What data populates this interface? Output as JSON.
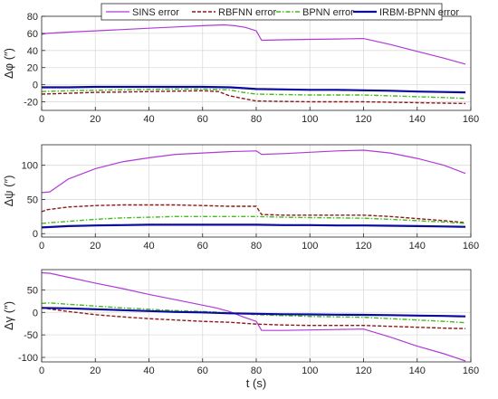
{
  "chart_data": {
    "type": "line",
    "xlabel": "t (s)",
    "xlim": [
      0,
      160
    ],
    "xticks": [
      0,
      20,
      40,
      60,
      80,
      100,
      120,
      140,
      160
    ],
    "legend": {
      "placement": "top",
      "entries": [
        "SINS error",
        "RBFNN error",
        "BPNN error",
        "IRBM-BPNN error"
      ]
    },
    "colors": {
      "SINS error": "#b03ad6",
      "RBFNN error": "#8b1a1a",
      "BPNN error": "#44bb1c",
      "IRBM-BPNN error": "#0a0a9c"
    },
    "grid": true,
    "panels": [
      {
        "ylabel": "Δφ (″)",
        "ylim": [
          -30,
          80
        ],
        "yticks": [
          -20,
          0,
          20,
          40,
          60,
          80
        ],
        "series": [
          {
            "name": "SINS error",
            "x": [
              0,
              2,
              10,
              20,
              30,
              40,
              50,
              60,
              68,
              72,
              76,
              80,
              82,
              90,
              100,
              110,
              120,
              130,
              140,
              150,
              158
            ],
            "values": [
              59,
              60,
              61.5,
              63,
              64.5,
              66,
              67.5,
              69,
              70,
              69,
              67,
              63,
              52,
              52.5,
              53,
              53.5,
              54,
              47,
              39,
              31,
              24
            ]
          },
          {
            "name": "RBFNN error",
            "x": [
              0,
              10,
              20,
              30,
              40,
              50,
              60,
              66,
              70,
              75,
              80,
              90,
              100,
              110,
              120,
              130,
              140,
              150,
              158
            ],
            "values": [
              -11,
              -10,
              -9,
              -8.5,
              -8,
              -7.5,
              -7,
              -8,
              -13,
              -16,
              -19,
              -19.5,
              -20,
              -20,
              -20,
              -20.5,
              -21,
              -21.5,
              -22
            ]
          },
          {
            "name": "BPNN error",
            "x": [
              0,
              10,
              20,
              30,
              40,
              50,
              60,
              70,
              75,
              80,
              90,
              100,
              110,
              120,
              130,
              140,
              150,
              158
            ],
            "values": [
              -8,
              -7,
              -6.5,
              -6,
              -5.5,
              -5,
              -5,
              -6,
              -9,
              -11,
              -11.5,
              -12,
              -12,
              -12,
              -13,
              -14,
              -15,
              -16
            ]
          },
          {
            "name": "IRBM-BPNN error",
            "x": [
              0,
              10,
              20,
              30,
              40,
              50,
              60,
              70,
              75,
              80,
              90,
              100,
              110,
              120,
              130,
              140,
              150,
              158
            ],
            "values": [
              -3,
              -3,
              -2.5,
              -2.5,
              -2.5,
              -2.5,
              -2.5,
              -3,
              -4,
              -5,
              -5.5,
              -6,
              -6,
              -6.5,
              -7,
              -8,
              -8.5,
              -9
            ]
          }
        ]
      },
      {
        "ylabel": "Δψ (″)",
        "ylim": [
          -5,
          130
        ],
        "yticks": [
          0,
          50,
          100
        ],
        "series": [
          {
            "name": "SINS error",
            "x": [
              0,
              3,
              10,
              20,
              30,
              40,
              50,
              60,
              70,
              80,
              82,
              90,
              100,
              110,
              120,
              130,
              140,
              150,
              158
            ],
            "values": [
              60,
              61,
              80,
              95,
              105,
              111,
              116,
              118,
              120,
              121,
              116,
              117,
              119,
              121,
              122,
              118,
              110,
              100,
              88
            ]
          },
          {
            "name": "RBFNN error",
            "x": [
              0,
              2,
              10,
              20,
              30,
              40,
              50,
              60,
              70,
              80,
              82,
              90,
              100,
              110,
              120,
              130,
              140,
              150,
              158
            ],
            "values": [
              32,
              35,
              39,
              41,
              42,
              42,
              42,
              41,
              40,
              40,
              28,
              27,
              27,
              27,
              27,
              25,
              22,
              19,
              16
            ]
          },
          {
            "name": "BPNN error",
            "x": [
              0,
              10,
              20,
              30,
              40,
              50,
              60,
              70,
              80,
              90,
              100,
              110,
              120,
              130,
              140,
              150,
              158
            ],
            "values": [
              15,
              18,
              21,
              23,
              24,
              25,
              25,
              25,
              25,
              24,
              23.5,
              23,
              22.5,
              21,
              19,
              17,
              15
            ]
          },
          {
            "name": "IRBM-BPNN error",
            "x": [
              0,
              10,
              20,
              30,
              40,
              50,
              60,
              70,
              80,
              90,
              100,
              110,
              120,
              130,
              140,
              150,
              158
            ],
            "values": [
              9,
              11,
              12,
              12.5,
              13,
              13,
              13,
              13,
              13,
              12.5,
              12.5,
              12,
              12,
              11.5,
              11,
              10.5,
              10
            ]
          }
        ]
      },
      {
        "ylabel": "Δγ (″)",
        "ylim": [
          -110,
          95
        ],
        "yticks": [
          -100,
          -50,
          0,
          50
        ],
        "series": [
          {
            "name": "SINS error",
            "x": [
              0,
              3,
              10,
              20,
              30,
              40,
              50,
              60,
              65,
              70,
              75,
              80,
              82,
              90,
              100,
              110,
              120,
              130,
              140,
              150,
              158
            ],
            "values": [
              88,
              87,
              78,
              65,
              53,
              40,
              28,
              16,
              10,
              2,
              -10,
              -20,
              -40,
              -40,
              -39,
              -38,
              -37,
              -55,
              -75,
              -92,
              -108
            ]
          },
          {
            "name": "RBFNN error",
            "x": [
              0,
              10,
              20,
              30,
              40,
              50,
              60,
              70,
              80,
              90,
              100,
              110,
              120,
              130,
              140,
              150,
              158
            ],
            "values": [
              10,
              2,
              -5,
              -10,
              -14,
              -17,
              -20,
              -22,
              -26,
              -28,
              -29,
              -29,
              -29,
              -31,
              -33,
              -35,
              -36
            ]
          },
          {
            "name": "BPNN error",
            "x": [
              0,
              3,
              10,
              20,
              30,
              40,
              50,
              60,
              70,
              80,
              90,
              100,
              110,
              120,
              130,
              140,
              150,
              158
            ],
            "values": [
              20,
              21,
              18,
              14,
              10,
              7,
              4,
              2,
              -1,
              -5,
              -7,
              -9,
              -10,
              -11,
              -14,
              -17,
              -20,
              -23
            ]
          },
          {
            "name": "IRBM-BPNN error",
            "x": [
              0,
              10,
              20,
              30,
              40,
              50,
              60,
              70,
              80,
              90,
              100,
              110,
              120,
              130,
              140,
              150,
              158
            ],
            "values": [
              10,
              9,
              7,
              5,
              3,
              1,
              0,
              -2,
              -3,
              -4,
              -4.5,
              -5,
              -5.5,
              -6,
              -7,
              -8,
              -9
            ]
          }
        ]
      }
    ]
  }
}
